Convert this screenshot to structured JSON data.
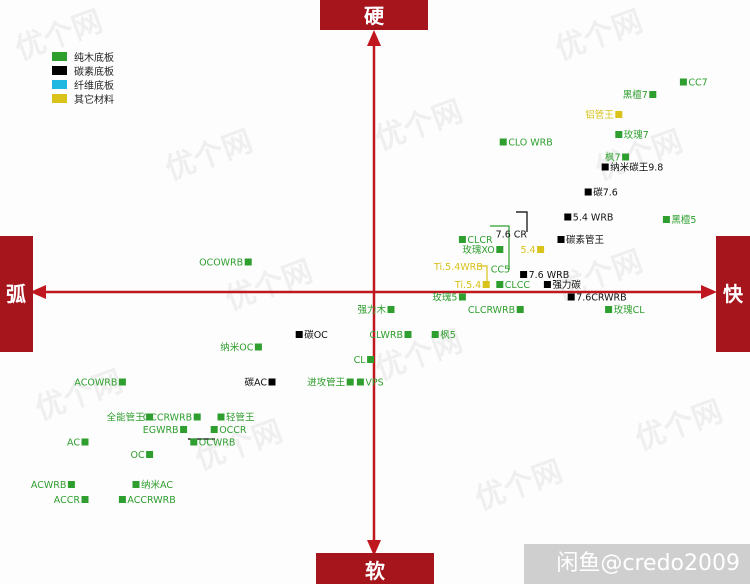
{
  "colors": {
    "wood": "#2e9e2e",
    "carbon": "#000000",
    "fiber": "#1fb8e0",
    "other": "#d9c21a",
    "axis": "#c0161f",
    "axis_label_bg": "#a6141c"
  },
  "watermark": "优个网",
  "credit": "闲鱼@credo2009",
  "chart_data": {
    "type": "scatter",
    "title": "",
    "axes": {
      "top": "硬",
      "bottom": "软",
      "left": "弧",
      "right": "快"
    },
    "xlim": [
      -100,
      100
    ],
    "ylim": [
      -100,
      100
    ],
    "grid": false,
    "legend_placement": "top-left",
    "legend": [
      {
        "key": "wood",
        "label": "纯木底板"
      },
      {
        "key": "carbon",
        "label": "碳素底板"
      },
      {
        "key": "fiber",
        "label": "纤维底板"
      },
      {
        "key": "other",
        "label": "其它材料"
      }
    ],
    "points": [
      {
        "label": "CC7",
        "x": 91,
        "y": 84,
        "cat": "wood",
        "side": "right"
      },
      {
        "label": "黑檀7",
        "x": 82,
        "y": 79,
        "cat": "wood",
        "side": "left"
      },
      {
        "label": "铝管王",
        "x": 72,
        "y": 71,
        "cat": "other",
        "side": "left"
      },
      {
        "label": "玫瑰7",
        "x": 72,
        "y": 63,
        "cat": "wood",
        "side": "right"
      },
      {
        "label": "CLO WRB",
        "x": 38,
        "y": 60,
        "cat": "wood",
        "side": "right"
      },
      {
        "label": "枫7",
        "x": 74,
        "y": 54,
        "cat": "wood",
        "side": "left"
      },
      {
        "label": "纳米碳王9.8",
        "x": 68,
        "y": 50,
        "cat": "carbon",
        "side": "right"
      },
      {
        "label": "碳7.6",
        "x": 63,
        "y": 40,
        "cat": "carbon",
        "side": "right"
      },
      {
        "label": "5.4 WRB",
        "x": 57,
        "y": 30,
        "cat": "carbon",
        "side": "right"
      },
      {
        "label": "黑檀5",
        "x": 86,
        "y": 29,
        "cat": "wood",
        "side": "right"
      },
      {
        "label": "碳素管王",
        "x": 55,
        "y": 21,
        "cat": "carbon",
        "side": "right"
      },
      {
        "label": "CLCR",
        "x": 26,
        "y": 21,
        "cat": "wood",
        "side": "right"
      },
      {
        "label": "玫瑰XO",
        "x": 37,
        "y": 17,
        "cat": "wood",
        "side": "left"
      },
      {
        "label": "5.4",
        "x": 49,
        "y": 17,
        "cat": "other",
        "side": "left"
      },
      {
        "label": "OCOWRB",
        "x": -37,
        "y": 12,
        "cat": "wood",
        "side": "left"
      },
      {
        "label": "7.6 WRB",
        "x": 44,
        "y": 7,
        "cat": "carbon",
        "side": "right"
      },
      {
        "label": "CLCC",
        "x": 37,
        "y": 3,
        "cat": "wood",
        "side": "right"
      },
      {
        "label": "强力碳",
        "x": 51,
        "y": 3,
        "cat": "carbon",
        "side": "right"
      },
      {
        "label": "玫瑰5",
        "x": 26,
        "y": -2,
        "cat": "wood",
        "side": "left"
      },
      {
        "label": "7.6CRWRB",
        "x": 58,
        "y": -2,
        "cat": "carbon",
        "side": "right"
      },
      {
        "label": "强力木",
        "x": 5,
        "y": -7,
        "cat": "wood",
        "side": "left"
      },
      {
        "label": "CLCRWRB",
        "x": 43,
        "y": -7,
        "cat": "wood",
        "side": "left"
      },
      {
        "label": "玫瑰CL",
        "x": 69,
        "y": -7,
        "cat": "wood",
        "side": "right"
      },
      {
        "label": "碳OC",
        "x": -22,
        "y": -17,
        "cat": "carbon",
        "side": "right"
      },
      {
        "label": "CLWRB",
        "x": 10,
        "y": -17,
        "cat": "wood",
        "side": "left"
      },
      {
        "label": "枫5",
        "x": 18,
        "y": -17,
        "cat": "wood",
        "side": "right"
      },
      {
        "label": "纳米OC",
        "x": -34,
        "y": -22,
        "cat": "wood",
        "side": "left"
      },
      {
        "label": "CL",
        "x": -1,
        "y": -27,
        "cat": "wood",
        "side": "left"
      },
      {
        "label": "ACOWRB",
        "x": -74,
        "y": -36,
        "cat": "wood",
        "side": "left"
      },
      {
        "label": "碳AC",
        "x": -30,
        "y": -36,
        "cat": "carbon",
        "side": "left"
      },
      {
        "label": "进攻管王",
        "x": -7,
        "y": -36,
        "cat": "wood",
        "side": "left"
      },
      {
        "label": "VPS",
        "x": -4,
        "y": -36,
        "cat": "wood",
        "side": "right"
      },
      {
        "label": "全能管王",
        "x": -66,
        "y": -50,
        "cat": "wood",
        "side": "left"
      },
      {
        "label": "OCCRWRB",
        "x": -52,
        "y": -50,
        "cat": "wood",
        "side": "left"
      },
      {
        "label": "轻管王",
        "x": -45,
        "y": -50,
        "cat": "wood",
        "side": "right"
      },
      {
        "label": "EGWRB",
        "x": -56,
        "y": -55,
        "cat": "wood",
        "side": "left"
      },
      {
        "label": "OCCR",
        "x": -47,
        "y": -55,
        "cat": "wood",
        "side": "right"
      },
      {
        "label": "AC",
        "x": -85,
        "y": -60,
        "cat": "wood",
        "side": "left"
      },
      {
        "label": "OCWRB",
        "x": -53,
        "y": -60,
        "cat": "wood",
        "side": "right"
      },
      {
        "label": "OC",
        "x": -66,
        "y": -65,
        "cat": "wood",
        "side": "left"
      },
      {
        "label": "ACWRB",
        "x": -89,
        "y": -77,
        "cat": "wood",
        "side": "left"
      },
      {
        "label": "纳米AC",
        "x": -70,
        "y": -77,
        "cat": "wood",
        "side": "right"
      },
      {
        "label": "ACCR",
        "x": -85,
        "y": -83,
        "cat": "wood",
        "side": "left"
      },
      {
        "label": "ACCRWRB",
        "x": -74,
        "y": -83,
        "cat": "wood",
        "side": "right"
      },
      {
        "label": "7.6 CR",
        "x": 45,
        "y": 23,
        "cat": "carbon",
        "side": "left",
        "callout": true
      },
      {
        "label": "CC5",
        "x": 40,
        "y": 9,
        "cat": "wood",
        "side": "left",
        "callout": true
      },
      {
        "label": "Ti.5.4WRB",
        "x": 32,
        "y": 10,
        "cat": "other",
        "side": "left",
        "callout": true
      },
      {
        "label": "Ti.5.4",
        "x": 33,
        "y": 3,
        "cat": "other",
        "side": "left"
      }
    ]
  }
}
